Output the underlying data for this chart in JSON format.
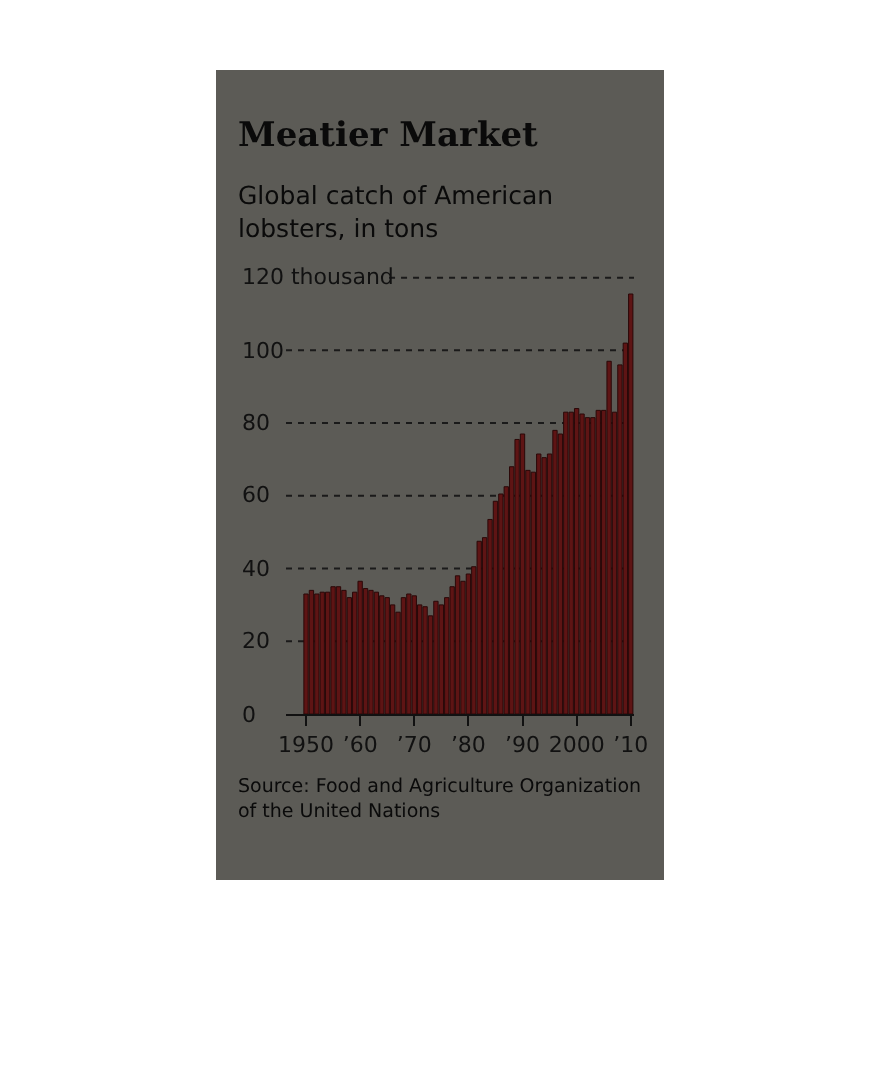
{
  "chart_data": {
    "type": "bar",
    "title": "Meatier Market",
    "subtitle": "Global catch of American\nlobsters, in tons",
    "x": [
      1950,
      1951,
      1952,
      1953,
      1954,
      1955,
      1956,
      1957,
      1958,
      1959,
      1960,
      1961,
      1962,
      1963,
      1964,
      1965,
      1966,
      1967,
      1968,
      1969,
      1970,
      1971,
      1972,
      1973,
      1974,
      1975,
      1976,
      1977,
      1978,
      1979,
      1980,
      1981,
      1982,
      1983,
      1984,
      1985,
      1986,
      1987,
      1988,
      1989,
      1990,
      1991,
      1992,
      1993,
      1994,
      1995,
      1996,
      1997,
      1998,
      1999,
      2000,
      2001,
      2002,
      2003,
      2004,
      2005,
      2006,
      2007,
      2008,
      2009,
      2010
    ],
    "values": [
      33,
      34,
      33,
      33.5,
      33.5,
      35,
      35,
      34,
      32,
      33.5,
      36.5,
      34.5,
      34,
      33.5,
      32.5,
      32,
      30,
      28,
      32,
      33,
      32.5,
      30,
      29.5,
      27,
      31,
      30,
      32,
      35,
      38,
      36.5,
      38.5,
      40.5,
      47.5,
      48.5,
      53.5,
      58.5,
      60.5,
      62.5,
      68,
      75.5,
      77,
      67,
      66.5,
      71.5,
      70.5,
      71.5,
      78,
      77,
      83,
      83,
      84,
      82.5,
      81.5,
      81.5,
      83.5,
      83.5,
      97,
      83,
      96,
      102,
      115.5
    ],
    "color": "#5e1414",
    "xlim": [
      1946.3,
      2010.6
    ],
    "xticks": [
      {
        "value": 1950,
        "label": "1950"
      },
      {
        "value": 1960,
        "label": "’60"
      },
      {
        "value": 1970,
        "label": "’70"
      },
      {
        "value": 1980,
        "label": "’80"
      },
      {
        "value": 1990,
        "label": "’90"
      },
      {
        "value": 2000,
        "label": "2000"
      },
      {
        "value": 2010,
        "label": "’10"
      }
    ],
    "ylim": [
      0,
      121
    ],
    "yticks": [
      0,
      20,
      40,
      60,
      80,
      100,
      {
        "value": 120,
        "label": "120 thousand"
      }
    ],
    "grid": "y",
    "annotations": [
      "Source: Food and Agriculture Organization\nof the United Nations"
    ]
  }
}
